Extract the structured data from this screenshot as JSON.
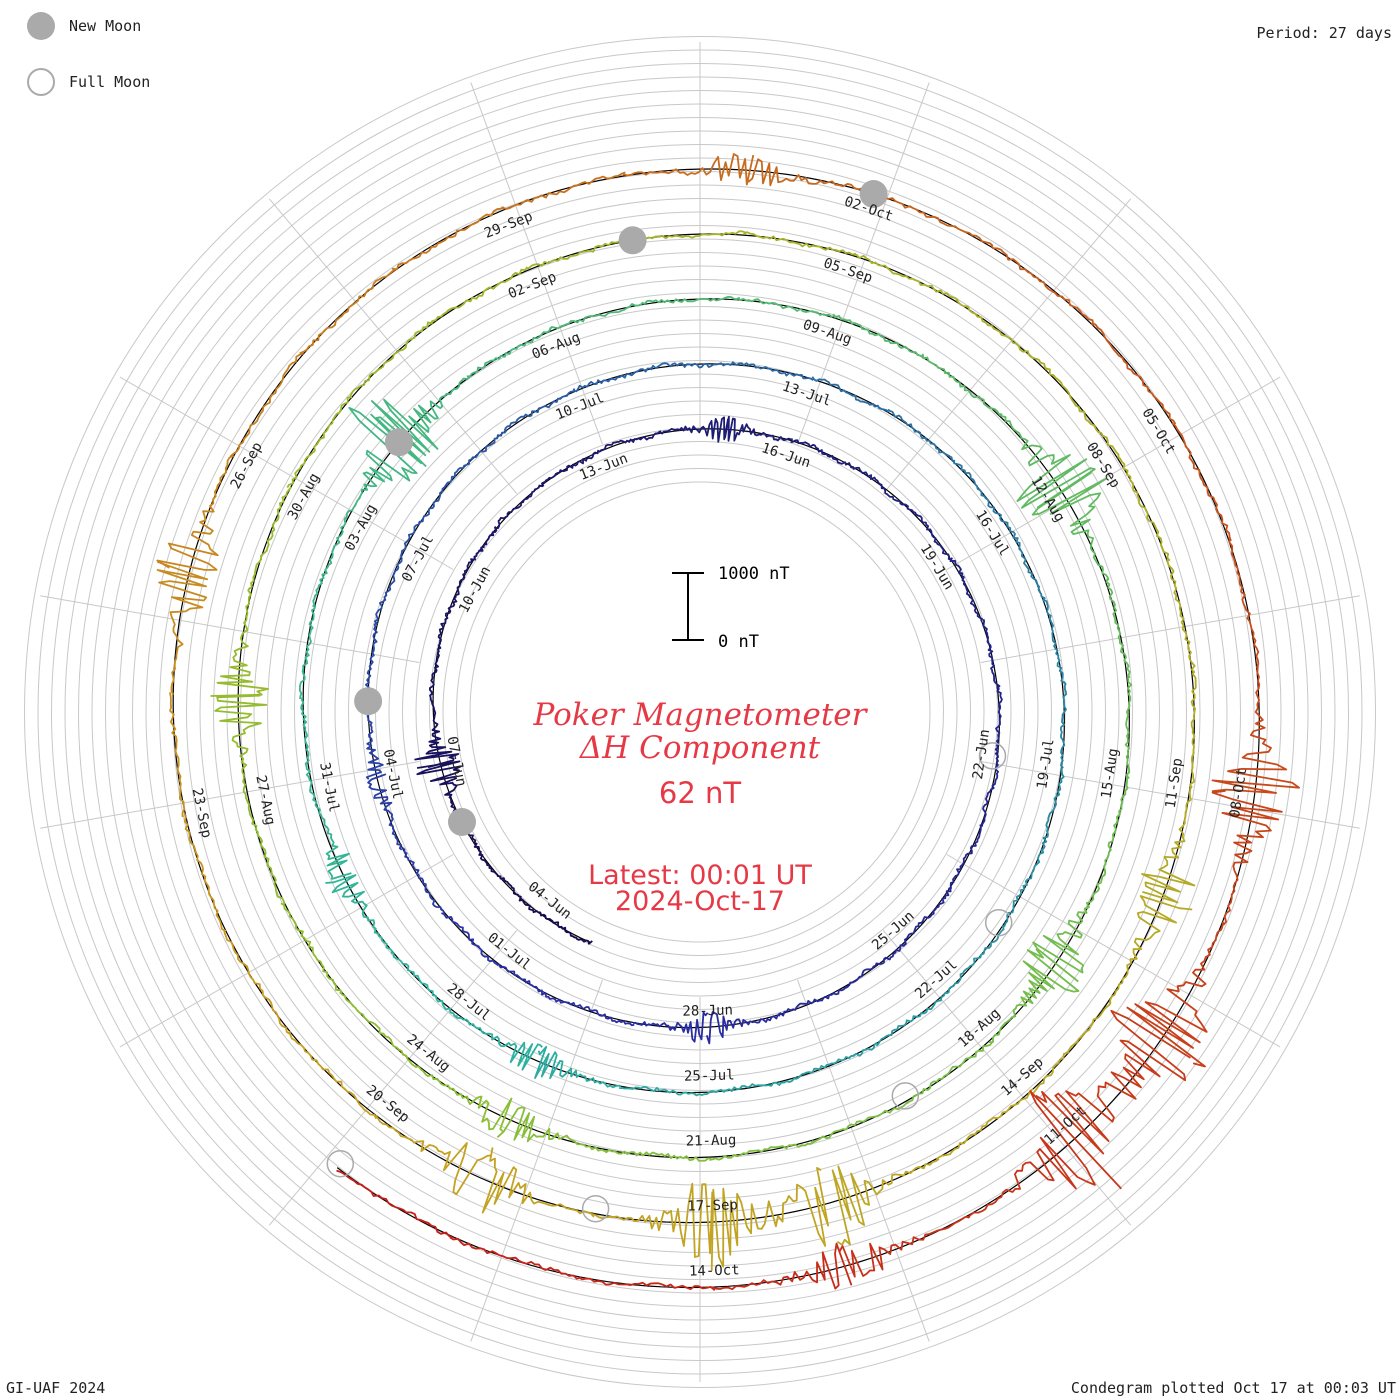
{
  "legend": {
    "new_moon_label": "New Moon",
    "full_moon_label": "Full Moon",
    "new_moon_color": "#aaaaaa",
    "full_moon_color": "#aaaaaa"
  },
  "header": {
    "period": "Period: 27 days"
  },
  "title": {
    "line1": "Poker Magnetometer",
    "line2": "ΔH Component",
    "value": "62 nT",
    "latest": "Latest: 00:01 UT",
    "date": "2024-Oct-17"
  },
  "footer": {
    "credit": "GI-UAF 2024",
    "plotted": "Condegram plotted Oct 17 at 00:03 UT"
  },
  "scale_bar": {
    "top_label": "1000 nT",
    "bottom_label": "0 nT"
  },
  "chart_data": {
    "type": "line",
    "title": "Poker Magnetometer ΔH Component",
    "layout": "spiral condegram, one revolution per period",
    "period_days": 27,
    "start_date": "2024-06-03",
    "end_date": "2024-10-17",
    "units": "nT",
    "grid": true,
    "scale_nT": [
      0,
      1000
    ],
    "date_labels": [
      "04-Jun",
      "07-Jun",
      "10-Jun",
      "13-Jun",
      "16-Jun",
      "19-Jun",
      "22-Jun",
      "25-Jun",
      "28-Jun",
      "01-Jul",
      "04-Jul",
      "07-Jul",
      "10-Jul",
      "13-Jul",
      "16-Jul",
      "19-Jul",
      "22-Jul",
      "25-Jul",
      "28-Jul",
      "31-Jul",
      "03-Aug",
      "06-Aug",
      "09-Aug",
      "12-Aug",
      "15-Aug",
      "18-Aug",
      "21-Aug",
      "24-Aug",
      "27-Aug",
      "30-Aug",
      "02-Sep",
      "05-Sep",
      "08-Sep",
      "11-Sep",
      "14-Sep",
      "17-Sep",
      "20-Sep",
      "23-Sep",
      "26-Sep",
      "29-Sep",
      "02-Oct",
      "05-Oct",
      "08-Oct",
      "11-Oct",
      "14-Oct"
    ],
    "new_moons": [
      "2024-06-06",
      "2024-07-05",
      "2024-08-04",
      "2024-09-03",
      "2024-10-02"
    ],
    "full_moons": [
      "2024-06-22",
      "2024-07-21",
      "2024-08-19",
      "2024-09-18",
      "2024-10-17"
    ],
    "disturbances": [
      {
        "date": "2024-06-07",
        "peak_nT": 350
      },
      {
        "date": "2024-06-15",
        "peak_nT": 180
      },
      {
        "date": "2024-06-28",
        "peak_nT": 220
      },
      {
        "date": "2024-07-04",
        "peak_nT": 160
      },
      {
        "date": "2024-07-27",
        "peak_nT": 260
      },
      {
        "date": "2024-07-30",
        "peak_nT": 250
      },
      {
        "date": "2024-08-04",
        "peak_nT": 800
      },
      {
        "date": "2024-08-12",
        "peak_nT": 740
      },
      {
        "date": "2024-08-17",
        "peak_nT": 460
      },
      {
        "date": "2024-08-23",
        "peak_nT": 280
      },
      {
        "date": "2024-08-28",
        "peak_nT": 420
      },
      {
        "date": "2024-09-12",
        "peak_nT": 420
      },
      {
        "date": "2024-09-16",
        "peak_nT": 620
      },
      {
        "date": "2024-09-17",
        "peak_nT": 650
      },
      {
        "date": "2024-09-19",
        "peak_nT": 480
      },
      {
        "date": "2024-09-25",
        "peak_nT": 460
      },
      {
        "date": "2024-10-01",
        "peak_nT": 220
      },
      {
        "date": "2024-10-08",
        "peak_nT": 600
      },
      {
        "date": "2024-10-10",
        "peak_nT": 850
      },
      {
        "date": "2024-10-11",
        "peak_nT": 900
      },
      {
        "date": "2024-10-13",
        "peak_nT": 320
      }
    ],
    "colors": {
      "trace_start": "#150c50",
      "trace_mid": "#2ab4a0",
      "trace_late": "#c8a020",
      "trace_end": "#c81818",
      "grid": "#c8c8c8",
      "baseline": "#000000",
      "title": "#e63946"
    }
  }
}
